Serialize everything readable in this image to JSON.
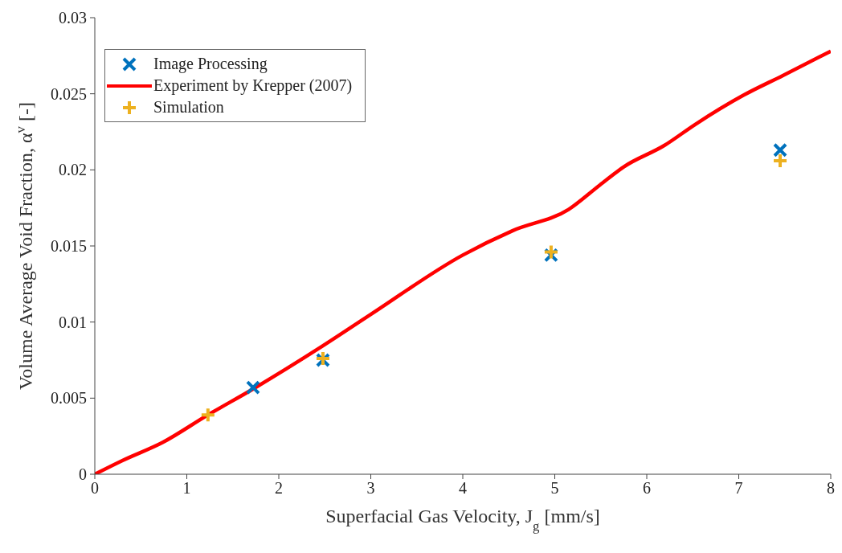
{
  "chart_data": {
    "type": "scatter",
    "xlabel": "Superfacial Gas Velocity, J$_{g}$ [mm/s]",
    "ylabel": "Volume Average Void Fraction, α$^{v}$ [-]",
    "xlim": [
      0,
      8
    ],
    "xticks": [
      0,
      1,
      2,
      3,
      4,
      5,
      6,
      7,
      8
    ],
    "ylim": [
      0,
      0.03
    ],
    "yticks": [
      0,
      0.005,
      0.01,
      0.015,
      0.02,
      0.025,
      0.03
    ],
    "grid": false,
    "legend": "top left",
    "series": [
      {
        "name": "Image Processing",
        "marker": "cross",
        "color": "#0072bd",
        "x": [
          1.72,
          2.48,
          4.96,
          7.45
        ],
        "values": [
          0.0057,
          0.0075,
          0.0144,
          0.0213
        ]
      },
      {
        "name": "Experiment by Krepper (2007)",
        "type": "line",
        "marker": "none",
        "color": "#ff0000",
        "x": [
          0,
          0.3,
          0.74,
          1.23,
          1.72,
          2.47,
          3.0,
          4.0,
          4.54,
          5.15,
          5.49,
          5.75,
          6.19,
          6.53,
          7.05,
          7.48,
          8
        ],
        "values": [
          0,
          0.0009,
          0.0021,
          0.0039,
          0.0056,
          0.0084,
          0.0105,
          0.0144,
          0.016,
          0.0174,
          0.019,
          0.0202,
          0.0216,
          0.023,
          0.0249,
          0.0262,
          0.0278
        ]
      },
      {
        "name": "Simulation",
        "marker": "plus",
        "color": "#edb120",
        "x": [
          1.23,
          2.48,
          4.96,
          7.45
        ],
        "values": [
          0.0039,
          0.0076,
          0.0146,
          0.0206
        ]
      }
    ]
  }
}
